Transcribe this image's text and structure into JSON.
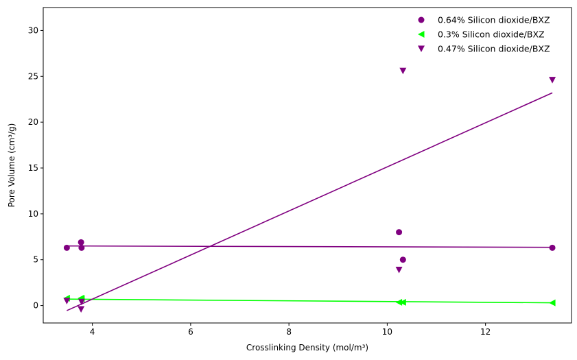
{
  "chart_data": {
    "type": "scatter",
    "title": "",
    "xlabel": "Crosslinking Density (mol/m³)",
    "ylabel": "Pore Volume (cm³/g)",
    "xlim": [
      3.0,
      13.75
    ],
    "ylim": [
      -1.9,
      32.5
    ],
    "xticks": [
      4,
      6,
      8,
      10,
      12
    ],
    "yticks": [
      0,
      5,
      10,
      15,
      20,
      25,
      30
    ],
    "grid": false,
    "legend_position": "top-right",
    "series": [
      {
        "name": "0.64% Silicon dioxide/BXZ",
        "marker": "circle",
        "color": "#800080",
        "x": [
          3.48,
          3.77,
          3.78,
          10.24,
          10.32,
          13.36
        ],
        "y": [
          6.3,
          6.9,
          6.3,
          8.0,
          5.0,
          6.3
        ],
        "trend": {
          "x": [
            3.48,
            13.36
          ],
          "y": [
            6.5,
            6.35
          ]
        }
      },
      {
        "name": "0.3% Silicon dioxide/BXZ",
        "marker": "triangle-left",
        "color": "#00ff00",
        "x": [
          3.48,
          3.77,
          3.78,
          10.24,
          10.32,
          13.36
        ],
        "y": [
          0.8,
          0.8,
          0.75,
          0.35,
          0.35,
          0.3
        ],
        "trend": {
          "x": [
            3.48,
            13.36
          ],
          "y": [
            0.7,
            0.3
          ]
        }
      },
      {
        "name": "0.47% Silicon dioxide/BXZ",
        "marker": "triangle-down",
        "color": "#800080",
        "x": [
          3.48,
          3.77,
          3.78,
          10.24,
          10.32,
          13.36
        ],
        "y": [
          0.5,
          -0.4,
          0.4,
          3.9,
          25.6,
          24.6
        ],
        "trend": {
          "x": [
            3.48,
            13.36
          ],
          "y": [
            -0.55,
            23.2
          ]
        }
      }
    ]
  }
}
